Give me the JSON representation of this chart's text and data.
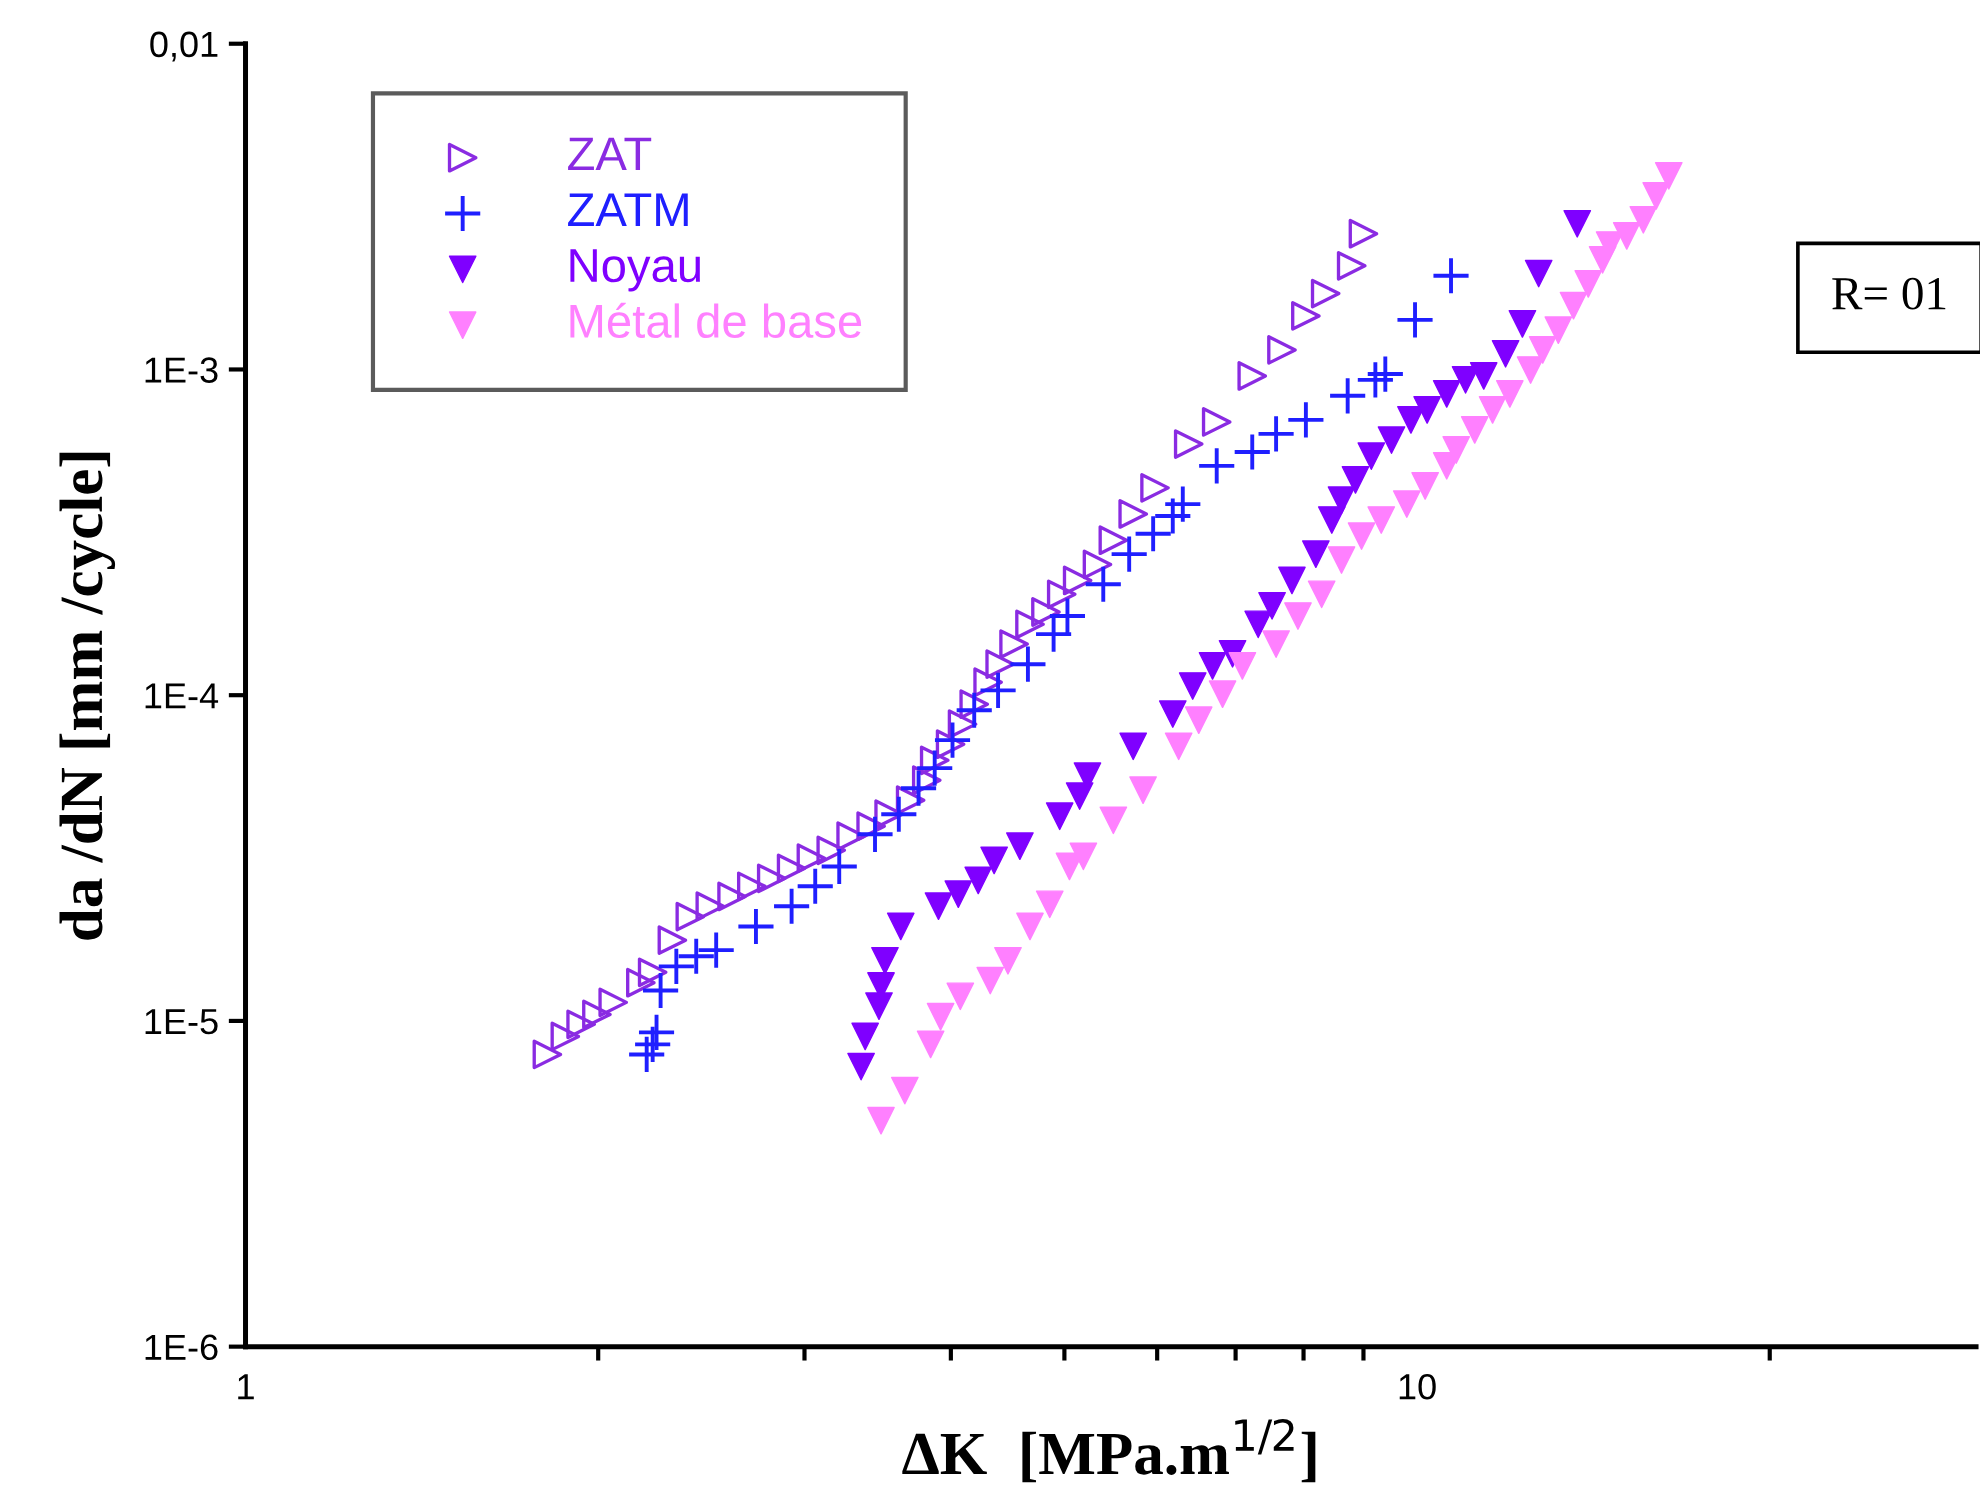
{
  "chart_data": {
    "type": "scatter",
    "xlabel": "ΔK  [MPa.m$^{1/2}$]",
    "ylabel": "da /dN [mm /cycle]",
    "log": "xy",
    "legend": "top left",
    "grid": false,
    "xlim": [
      1,
      30
    ],
    "xticks": [
      1,
      {
        "value": 2,
        "label": null
      },
      {
        "value": 3,
        "label": null
      },
      {
        "value": 4,
        "label": null
      },
      {
        "value": 5,
        "label": null
      },
      {
        "value": 6,
        "label": null
      },
      {
        "value": 7,
        "label": null
      },
      {
        "value": 8,
        "label": null
      },
      {
        "value": 9,
        "label": null
      },
      10,
      {
        "value": 20,
        "label": null
      }
    ],
    "ylim": [
      1e-06,
      0.01
    ],
    "yticks": [
      {
        "value": 1e-06,
        "label": "1E-6"
      },
      {
        "value": 1e-05,
        "label": "1E-5"
      },
      {
        "value": 0.0001,
        "label": "1E-4"
      },
      {
        "value": 0.001,
        "label": "1E-3"
      },
      {
        "value": 0.01,
        "label": "0,01"
      }
    ],
    "annotations": [
      "R= 01"
    ],
    "series": [
      {
        "name": "ZAT",
        "color": "#8a2be2",
        "marker": "triangle-right-open",
        "x": [
          1.81,
          1.875,
          1.934,
          1.995,
          2.06,
          2.175,
          2.226,
          2.314,
          2.397,
          2.493,
          2.602,
          2.705,
          2.813,
          2.925,
          3.041,
          3.162,
          3.288,
          3.42,
          3.543,
          3.696,
          3.815,
          3.875,
          3.998,
          4.093,
          4.188,
          4.304,
          4.407,
          4.529,
          4.673,
          4.822,
          4.974,
          5.132,
          5.336,
          5.505,
          5.724,
          5.975,
          6.384,
          6.745,
          7.233,
          7.668,
          8.037,
          8.356,
          8.794,
          9.0
        ],
        "values": [
          7.89e-06,
          8.96e-06,
          9.76e-06,
          1.047e-05,
          1.14e-05,
          1.31e-05,
          1.41e-05,
          1.77e-05,
          2.09e-05,
          2.25e-05,
          2.41e-05,
          2.59e-05,
          2.74e-05,
          2.94e-05,
          3.16e-05,
          3.34e-05,
          3.69e-05,
          3.96e-05,
          4.31e-05,
          4.76e-05,
          5.48e-05,
          6.31e-05,
          7.07e-05,
          8.15e-05,
          9.38e-05,
          0.0001096,
          0.0001245,
          0.0001435,
          0.000165,
          0.00018,
          0.000204,
          0.000225,
          0.000252,
          0.000299,
          0.00036,
          0.000433,
          0.00059,
          0.00069,
          0.000955,
          0.001148,
          0.00146,
          0.00171,
          0.00208,
          0.00261
        ]
      },
      {
        "name": "ZATM",
        "color": "#1f1fff",
        "marker": "plus",
        "x": [
          2.2,
          2.226,
          2.243,
          2.261,
          2.332,
          2.425,
          2.522,
          2.727,
          2.925,
          3.064,
          3.212,
          3.446,
          3.611,
          3.754,
          3.875,
          4.013,
          4.188,
          4.389,
          4.654,
          4.895,
          5.03,
          5.397,
          5.679,
          5.953,
          6.187,
          6.31,
          6.745,
          7.233,
          7.58,
          8.037,
          8.725,
          9.213,
          9.395,
          9.96,
          10.69
        ],
        "values": [
          7.89e-06,
          8.47e-06,
          9.22e-06,
          1.24e-05,
          1.47e-05,
          1.58e-05,
          1.65e-05,
          1.95e-05,
          2.25e-05,
          2.59e-05,
          2.98e-05,
          3.74e-05,
          4.31e-05,
          5.18e-05,
          5.97e-05,
          7.28e-05,
          8.99e-05,
          0.0001035,
          0.0001245,
          0.000154,
          0.000175,
          0.000219,
          0.000271,
          0.000313,
          0.000355,
          0.000386,
          0.000506,
          0.000558,
          0.000634,
          0.0007,
          0.00083,
          0.000929,
          0.000968,
          0.00142,
          0.00194
        ]
      },
      {
        "name": "Noyau",
        "color": "#7f00ff",
        "marker": "triangle-down",
        "x": [
          3.353,
          3.38,
          3.473,
          3.487,
          3.514,
          3.625,
          3.904,
          4.059,
          4.221,
          4.355,
          4.581,
          4.954,
          5.152,
          5.232,
          5.724,
          6.187,
          6.434,
          6.69,
          6.958,
          7.318,
          7.52,
          7.82,
          8.196,
          8.457,
          8.62,
          8.86,
          9.14,
          9.51,
          9.88,
          10.2,
          10.6,
          11.0,
          11.4,
          11.9,
          12.3,
          12.7,
          13.7
        ],
        "values": [
          7.24e-06,
          8.96e-06,
          1.11e-05,
          1.28e-05,
          1.53e-05,
          1.95e-05,
          2.25e-05,
          2.45e-05,
          2.7e-05,
          3.11e-05,
          3.44e-05,
          4.25e-05,
          4.9e-05,
          5.64e-05,
          6.97e-05,
          8.75e-05,
          0.0001067,
          0.000123,
          0.000134,
          0.000165,
          0.000188,
          0.000225,
          0.000271,
          0.000345,
          0.000397,
          0.000458,
          0.000542,
          0.000607,
          0.0007,
          0.000751,
          0.000841,
          0.000929,
          0.000955,
          0.001117,
          0.00138,
          0.00197,
          0.0028
        ]
      },
      {
        "name": "Métal de base",
        "color": "#ff80ff",
        "marker": "triangle-down",
        "x": [
          3.487,
          3.654,
          3.844,
          3.92,
          4.075,
          4.322,
          4.475,
          4.673,
          4.858,
          5.05,
          5.19,
          5.505,
          5.836,
          6.259,
          6.511,
          6.823,
          7.094,
          7.58,
          7.913,
          8.29,
          8.62,
          8.966,
          9.32,
          9.8,
          10.16,
          10.6,
          10.8,
          11.2,
          11.6,
          12.0,
          12.5,
          12.8,
          13.2,
          13.6,
          14.0,
          14.4,
          14.6,
          15.1,
          15.6,
          16.0,
          16.4
        ],
        "values": [
          4.94e-06,
          6.11e-06,
          8.47e-06,
          1.03e-05,
          1.19e-05,
          1.33e-05,
          1.53e-05,
          1.95e-05,
          2.28e-05,
          2.98e-05,
          3.2e-05,
          4.13e-05,
          5.11e-05,
          6.97e-05,
          8.38e-05,
          0.0001007,
          0.000123,
          0.0001435,
          0.000175,
          0.000204,
          0.00026,
          0.000308,
          0.000345,
          0.000386,
          0.000439,
          0.000506,
          0.000566,
          0.000652,
          0.000751,
          0.000841,
          0.000996,
          0.001148,
          0.00132,
          0.00157,
          0.00183,
          0.00217,
          0.00241,
          0.00257,
          0.00288,
          0.00341,
          0.00393
        ]
      }
    ]
  }
}
